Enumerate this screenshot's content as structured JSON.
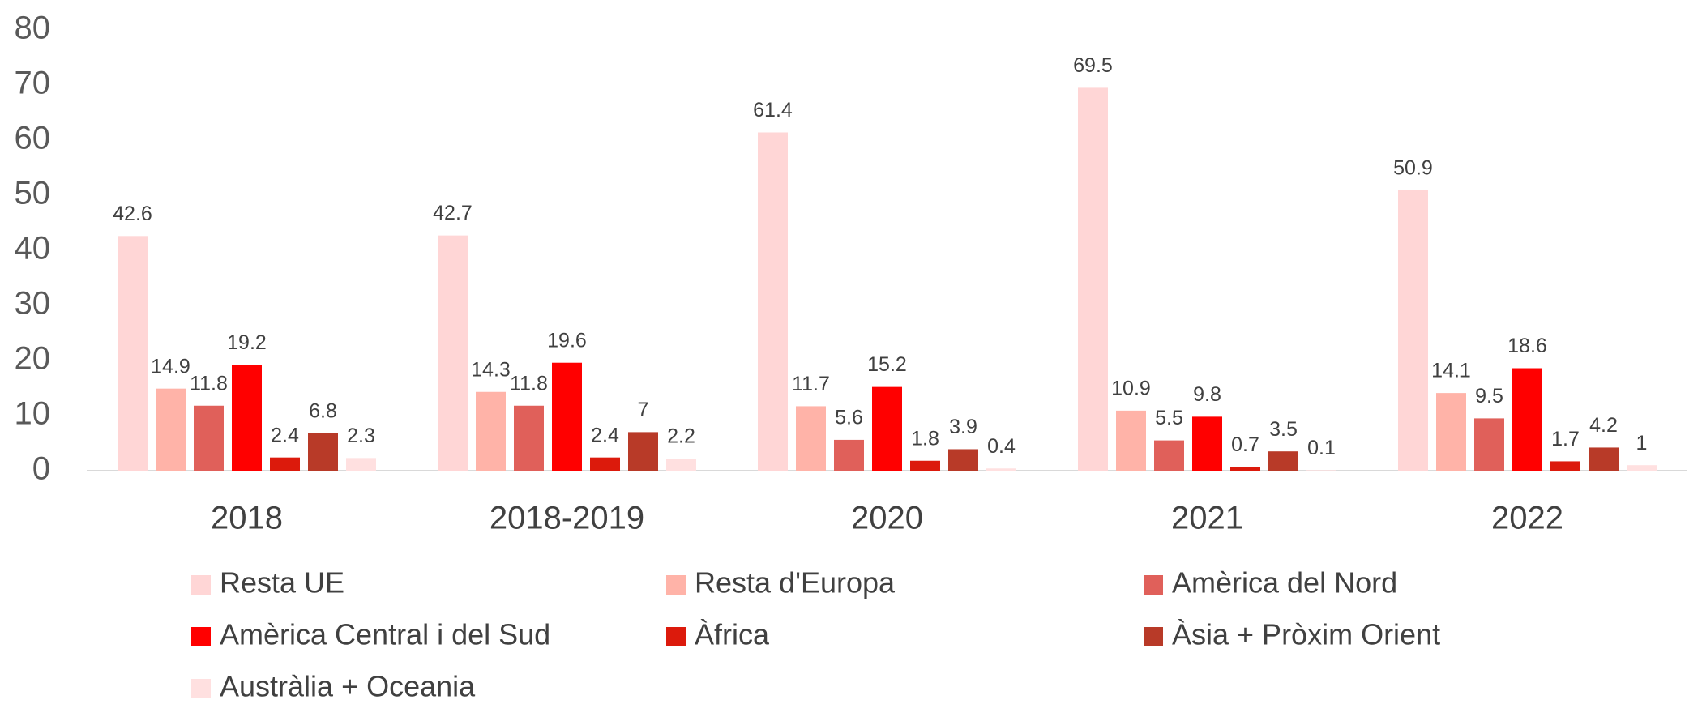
{
  "chart_data": {
    "type": "bar",
    "categories": [
      "2018",
      "2018-2019",
      "2020",
      "2021",
      "2022"
    ],
    "series": [
      {
        "name": "Resta UE",
        "color": "#ffd6d6",
        "values": [
          42.6,
          42.7,
          61.4,
          69.5,
          50.9
        ]
      },
      {
        "name": "Resta d'Europa",
        "color": "#ffb3a8",
        "values": [
          14.9,
          14.3,
          11.7,
          10.9,
          14.1
        ]
      },
      {
        "name": "Amèrica del Nord",
        "color": "#e0605a",
        "values": [
          11.8,
          11.8,
          5.6,
          5.5,
          9.5
        ]
      },
      {
        "name": "Amèrica Central i del Sud",
        "color": "#ff0000",
        "values": [
          19.2,
          19.6,
          15.2,
          9.8,
          18.6
        ]
      },
      {
        "name": "Àfrica",
        "color": "#dc1a0c",
        "values": [
          2.4,
          2.4,
          1.8,
          0.7,
          1.7
        ]
      },
      {
        "name": "Àsia + Pròxim Orient",
        "color": "#b83a28",
        "values": [
          6.8,
          7,
          3.9,
          3.5,
          4.2
        ]
      },
      {
        "name": "Austràlia + Oceania",
        "color": "#ffe0e0",
        "values": [
          2.3,
          2.2,
          0.4,
          0.1,
          1
        ]
      }
    ],
    "ylim": [
      0,
      80
    ],
    "yticks": [
      0,
      10,
      20,
      30,
      40,
      50,
      60,
      70,
      80
    ],
    "grid": false,
    "legend": "bottom",
    "data_labels": true
  }
}
